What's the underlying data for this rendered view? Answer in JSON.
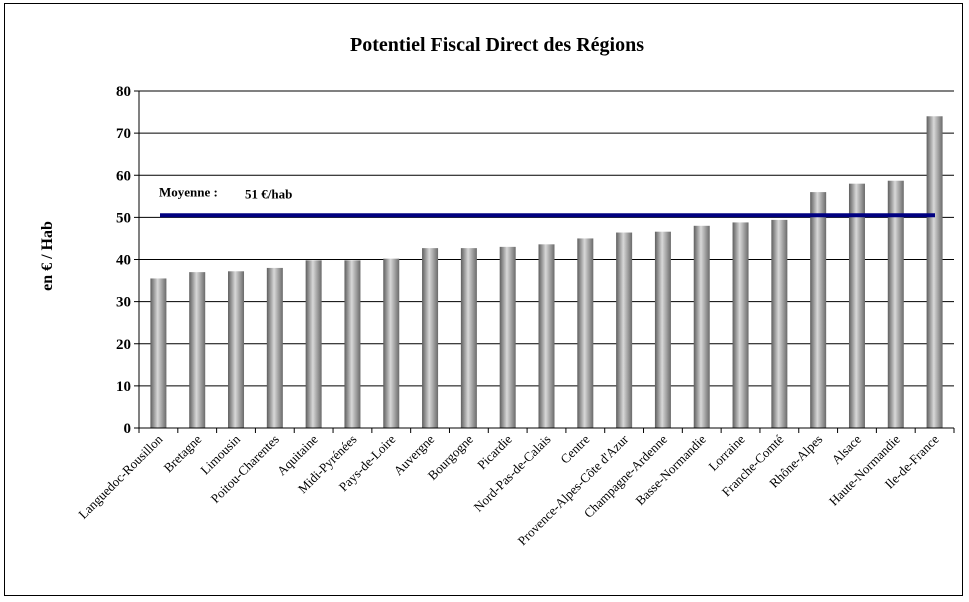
{
  "chart_data": {
    "type": "bar",
    "title": "Potentiel Fiscal Direct des Régions",
    "ylabel": "en € / Hab",
    "xlabel": "",
    "ylim": [
      0,
      80
    ],
    "yticks": [
      0,
      10,
      20,
      30,
      40,
      50,
      60,
      70,
      80
    ],
    "grid": true,
    "categories": [
      "Languedoc-Rousillon",
      "Bretagne",
      "Limousin",
      "Poitou-Charentes",
      "Aquitaine",
      "Midi-Pyrénées",
      "Pays-de-Loire",
      "Auvergne",
      "Bourgogne",
      "Picardie",
      "Nord-Pas-de-Calais",
      "Centre",
      "Provence-Alpes-Côte d'Azur",
      "Champagne-Ardenne",
      "Basse-Normandie",
      "Lorraine",
      "Franche-Comté",
      "Rhône-Alpes",
      "Alsace",
      "Haute-Normandie",
      "Ile-de-France"
    ],
    "values": [
      35.5,
      37,
      37.2,
      38,
      39.8,
      39.8,
      40.2,
      42.7,
      42.7,
      43,
      43.6,
      45,
      46.4,
      46.6,
      48,
      48.8,
      49.4,
      56,
      58,
      58.7,
      74
    ],
    "average": {
      "label": "Moyenne :",
      "value_text": "51 €/hab",
      "value": 50.5,
      "color": "#000080"
    },
    "bar_color": "#9a9a9a"
  }
}
